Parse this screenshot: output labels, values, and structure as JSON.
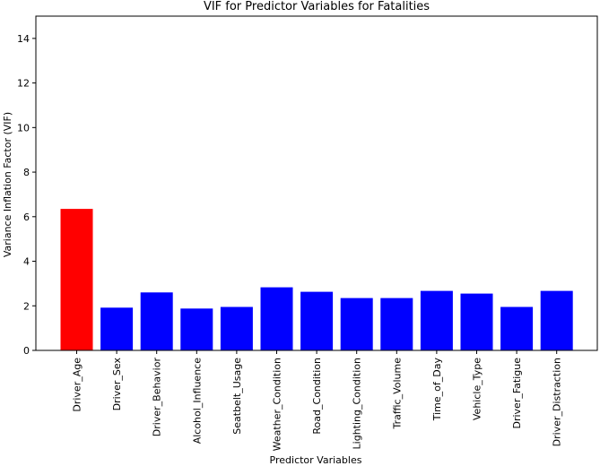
{
  "chart_data": {
    "type": "bar",
    "title": "VIF for Predictor Variables for Fatalities",
    "xlabel": "Predictor Variables",
    "ylabel": "Variance Inflation Factor (VIF)",
    "ylim": [
      0,
      15
    ],
    "yticks": [
      0,
      2,
      4,
      6,
      8,
      10,
      12,
      14
    ],
    "grid": false,
    "categories": [
      "Driver_Age",
      "Driver_Sex",
      "Driver_Behavior",
      "Alcohol_Influence",
      "Seatbelt_Usage",
      "Weather_Condition",
      "Road_Condition",
      "Lighting_Condition",
      "Traffic_Volume",
      "Time_of_Day",
      "Vehicle_Type",
      "Driver_Fatigue",
      "Driver_Distraction"
    ],
    "values": [
      6.35,
      1.92,
      2.6,
      1.88,
      1.95,
      2.83,
      2.63,
      2.35,
      2.35,
      2.67,
      2.55,
      1.95,
      2.67
    ],
    "colors": [
      "#ff0000",
      "#0000ff",
      "#0000ff",
      "#0000ff",
      "#0000ff",
      "#0000ff",
      "#0000ff",
      "#0000ff",
      "#0000ff",
      "#0000ff",
      "#0000ff",
      "#0000ff",
      "#0000ff"
    ]
  }
}
